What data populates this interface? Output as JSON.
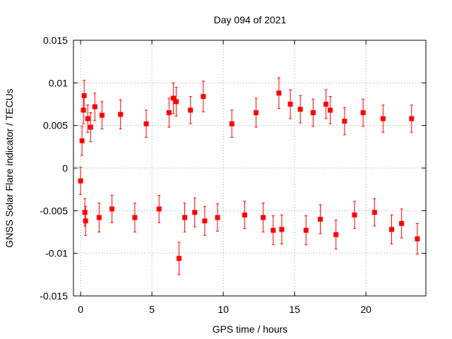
{
  "chart_data": {
    "type": "scatter",
    "title": "Day 094 of 2021",
    "xlabel": "GPS time / hours",
    "ylabel": "GNSS Solar Flare indicator / TECUs",
    "xlim": [
      -0.5,
      24.2
    ],
    "ylim": [
      -0.015,
      0.015
    ],
    "xticks": [
      0,
      5,
      10,
      15,
      20
    ],
    "xtick_labels": [
      "0",
      "5",
      "10",
      "15",
      "20"
    ],
    "yticks": [
      -0.015,
      -0.01,
      -0.005,
      0,
      0.005,
      0.01,
      0.015
    ],
    "ytick_labels": [
      "-0.015",
      "-0.01",
      "-0.005",
      "0",
      "0.005",
      "0.01",
      "0.015"
    ],
    "grid": true,
    "marker": "square",
    "color": "#ff0000",
    "series": [
      {
        "points": [
          {
            "x": 0.0,
            "y": -0.0015,
            "err": 0.0016
          },
          {
            "x": 0.1,
            "y": 0.0032,
            "err": 0.0017
          },
          {
            "x": 0.2,
            "y": 0.0068,
            "err": 0.0016
          },
          {
            "x": 0.25,
            "y": 0.0085,
            "err": 0.0018
          },
          {
            "x": 0.3,
            "y": -0.0052,
            "err": 0.0016
          },
          {
            "x": 0.35,
            "y": -0.0062,
            "err": 0.0017
          },
          {
            "x": 0.5,
            "y": 0.0058,
            "err": 0.0016
          },
          {
            "x": 0.7,
            "y": 0.0048,
            "err": 0.0017
          },
          {
            "x": 1.0,
            "y": 0.0072,
            "err": 0.0016
          },
          {
            "x": 1.3,
            "y": -0.0058,
            "err": 0.0017
          },
          {
            "x": 1.5,
            "y": 0.0062,
            "err": 0.0016
          },
          {
            "x": 2.2,
            "y": -0.0048,
            "err": 0.0016
          },
          {
            "x": 2.8,
            "y": 0.0063,
            "err": 0.0017
          },
          {
            "x": 3.8,
            "y": -0.0058,
            "err": 0.0017
          },
          {
            "x": 4.6,
            "y": 0.0052,
            "err": 0.0016
          },
          {
            "x": 5.5,
            "y": -0.0048,
            "err": 0.0016
          },
          {
            "x": 6.2,
            "y": 0.0065,
            "err": 0.0017
          },
          {
            "x": 6.5,
            "y": 0.0082,
            "err": 0.0018
          },
          {
            "x": 6.7,
            "y": 0.0078,
            "err": 0.0017
          },
          {
            "x": 6.9,
            "y": -0.0106,
            "err": 0.0019
          },
          {
            "x": 7.3,
            "y": -0.0058,
            "err": 0.0017
          },
          {
            "x": 7.7,
            "y": 0.0068,
            "err": 0.0016
          },
          {
            "x": 8.0,
            "y": -0.0052,
            "err": 0.0017
          },
          {
            "x": 8.6,
            "y": 0.0084,
            "err": 0.0018
          },
          {
            "x": 8.7,
            "y": -0.0062,
            "err": 0.0017
          },
          {
            "x": 9.6,
            "y": -0.0058,
            "err": 0.0016
          },
          {
            "x": 10.6,
            "y": 0.0052,
            "err": 0.0016
          },
          {
            "x": 11.5,
            "y": -0.0055,
            "err": 0.0016
          },
          {
            "x": 12.3,
            "y": 0.0065,
            "err": 0.0017
          },
          {
            "x": 12.8,
            "y": -0.0058,
            "err": 0.0017
          },
          {
            "x": 13.5,
            "y": -0.0073,
            "err": 0.0017
          },
          {
            "x": 13.9,
            "y": 0.0088,
            "err": 0.0018
          },
          {
            "x": 14.1,
            "y": -0.0072,
            "err": 0.0017
          },
          {
            "x": 14.7,
            "y": 0.0075,
            "err": 0.0017
          },
          {
            "x": 15.4,
            "y": 0.0069,
            "err": 0.0016
          },
          {
            "x": 15.8,
            "y": -0.0073,
            "err": 0.0017
          },
          {
            "x": 16.3,
            "y": 0.0065,
            "err": 0.0016
          },
          {
            "x": 16.8,
            "y": -0.006,
            "err": 0.0017
          },
          {
            "x": 17.2,
            "y": 0.0075,
            "err": 0.0017
          },
          {
            "x": 17.5,
            "y": 0.0068,
            "err": 0.0016
          },
          {
            "x": 17.9,
            "y": -0.0078,
            "err": 0.0017
          },
          {
            "x": 18.5,
            "y": 0.0055,
            "err": 0.0016
          },
          {
            "x": 19.2,
            "y": -0.0055,
            "err": 0.0016
          },
          {
            "x": 19.8,
            "y": 0.0065,
            "err": 0.0016
          },
          {
            "x": 20.6,
            "y": -0.0052,
            "err": 0.0016
          },
          {
            "x": 21.2,
            "y": 0.0058,
            "err": 0.0016
          },
          {
            "x": 21.8,
            "y": -0.0072,
            "err": 0.0017
          },
          {
            "x": 22.5,
            "y": -0.0065,
            "err": 0.0017
          },
          {
            "x": 23.2,
            "y": 0.0058,
            "err": 0.0016
          },
          {
            "x": 23.6,
            "y": -0.0083,
            "err": 0.0018
          }
        ]
      }
    ]
  }
}
